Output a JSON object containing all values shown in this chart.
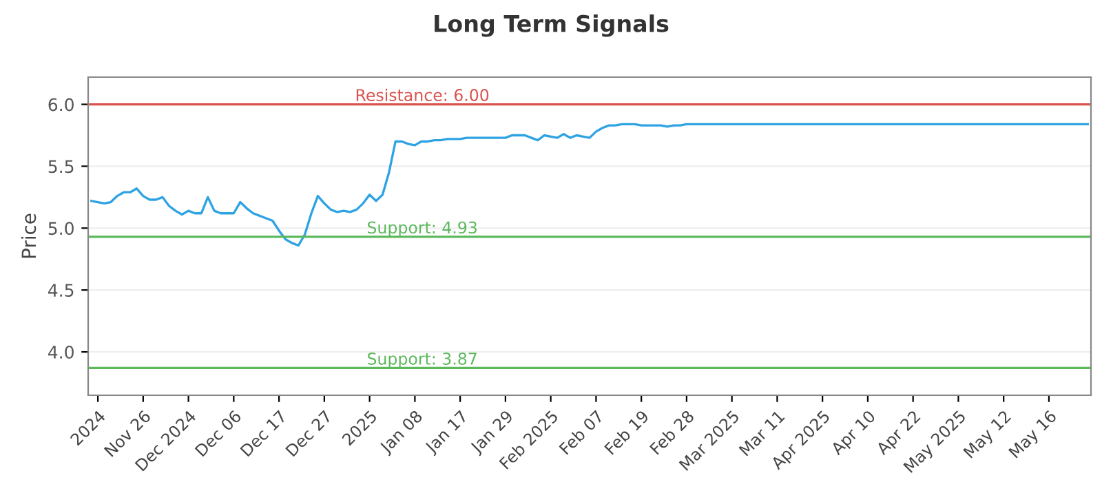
{
  "chart_data": {
    "type": "line",
    "title": "Long Term Signals",
    "ylabel": "Price",
    "categories": [
      null,
      "2024",
      null,
      null,
      null,
      null,
      null,
      null,
      "Nov 26",
      null,
      null,
      null,
      null,
      null,
      null,
      "Dec 2024",
      null,
      null,
      null,
      null,
      null,
      null,
      "Dec 06",
      null,
      null,
      null,
      null,
      null,
      null,
      "Dec 17",
      null,
      null,
      null,
      null,
      null,
      null,
      "Dec 27",
      null,
      null,
      null,
      null,
      null,
      null,
      "2025",
      null,
      null,
      null,
      null,
      null,
      null,
      "Jan 08",
      null,
      null,
      null,
      null,
      null,
      null,
      "Jan 17",
      null,
      null,
      null,
      null,
      null,
      null,
      "Jan 29",
      null,
      null,
      null,
      null,
      null,
      null,
      "Feb 2025",
      null,
      null,
      null,
      null,
      null,
      null,
      "Feb 07",
      null,
      null,
      null,
      null,
      null,
      null,
      "Feb 19",
      null,
      null,
      null,
      null,
      null,
      null,
      "Feb 28",
      null,
      null,
      null,
      null,
      null,
      null,
      "Mar 2025",
      null,
      null,
      null,
      null,
      null,
      null,
      "Mar 11",
      null,
      null,
      null,
      null,
      null,
      null,
      "Apr 2025",
      null,
      null,
      null,
      null,
      null,
      null,
      "Apr 10",
      null,
      null,
      null,
      null,
      null,
      null,
      "Apr 22",
      null,
      null,
      null,
      null,
      null,
      null,
      "May 2025",
      null,
      null,
      null,
      null,
      null,
      null,
      "May 12",
      null,
      null,
      null,
      null,
      null,
      null,
      "May 16",
      null,
      null,
      null,
      null,
      null,
      null
    ],
    "series": [
      {
        "color": "#2ea3e3",
        "values": [
          5.22,
          5.21,
          5.2,
          5.21,
          5.26,
          5.29,
          5.29,
          5.32,
          5.26,
          5.23,
          5.23,
          5.25,
          5.18,
          5.14,
          5.11,
          5.14,
          5.12,
          5.12,
          5.25,
          5.14,
          5.12,
          5.12,
          5.12,
          5.21,
          5.16,
          5.12,
          5.1,
          5.08,
          5.06,
          4.98,
          4.91,
          4.88,
          4.86,
          4.95,
          5.12,
          5.26,
          5.2,
          5.15,
          5.13,
          5.14,
          5.13,
          5.15,
          5.2,
          5.27,
          5.22,
          5.27,
          5.45,
          5.7,
          5.7,
          5.68,
          5.67,
          5.7,
          5.7,
          5.71,
          5.71,
          5.72,
          5.72,
          5.72,
          5.73,
          5.73,
          5.73,
          5.73,
          5.73,
          5.73,
          5.73,
          5.75,
          5.75,
          5.75,
          5.73,
          5.71,
          5.75,
          5.74,
          5.73,
          5.76,
          5.73,
          5.75,
          5.74,
          5.73,
          5.78,
          5.81,
          5.83,
          5.83,
          5.84,
          5.84,
          5.84,
          5.83,
          5.83,
          5.83,
          5.83,
          5.82,
          5.83,
          5.83,
          5.84,
          5.84,
          5.84,
          5.84,
          5.84,
          5.84,
          5.84,
          5.84,
          5.84,
          5.84,
          5.84,
          5.84,
          5.84,
          5.84,
          5.84,
          5.84,
          5.84,
          5.84,
          5.84,
          5.84,
          5.84,
          5.84,
          5.84,
          5.84,
          5.84,
          5.84,
          5.84,
          5.84,
          5.84,
          5.84,
          5.84,
          5.84,
          5.84,
          5.84,
          5.84,
          5.84,
          5.84,
          5.84,
          5.84,
          5.84,
          5.84,
          5.84,
          5.84,
          5.84,
          5.84,
          5.84,
          5.84,
          5.84,
          5.84,
          5.84,
          5.84,
          5.84,
          5.84,
          5.84,
          5.84,
          5.84,
          5.84,
          5.84,
          5.84,
          5.84,
          5.84,
          5.84,
          5.84
        ]
      }
    ],
    "ylim": [
      3.65,
      6.22
    ],
    "yticks": [
      {
        "value": 4.0,
        "label": "4.0"
      },
      {
        "value": 4.5,
        "label": "4.5"
      },
      {
        "value": 5.0,
        "label": "5.0"
      },
      {
        "value": 5.5,
        "label": "5.5"
      },
      {
        "value": 6.0,
        "label": "6.0"
      }
    ],
    "grid": "y",
    "legend": false,
    "ref_lines": [
      {
        "axis": "y",
        "value": 6.0,
        "label": "Resistance: 6.00",
        "color": "#d9534f"
      },
      {
        "axis": "y",
        "value": 4.93,
        "label": "Support: 4.93",
        "color": "#5cb85c"
      },
      {
        "axis": "y",
        "value": 3.87,
        "label": "Support: 3.87",
        "color": "#5cb85c"
      }
    ]
  }
}
